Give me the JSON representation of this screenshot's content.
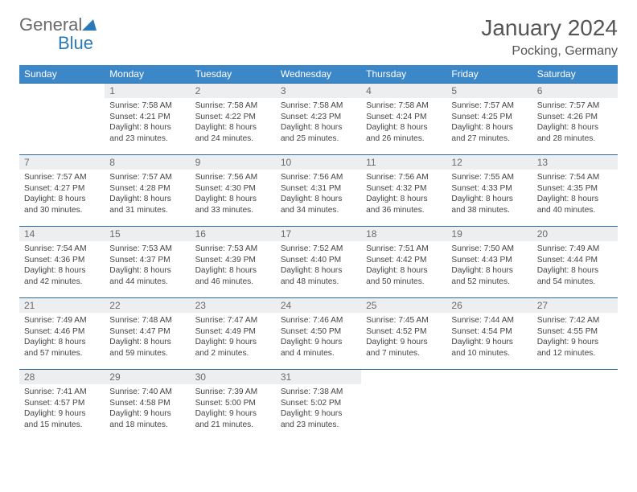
{
  "brand": {
    "part1": "General",
    "part2": "Blue"
  },
  "title": "January 2024",
  "location": "Pocking, Germany",
  "headers": [
    "Sunday",
    "Monday",
    "Tuesday",
    "Wednesday",
    "Thursday",
    "Friday",
    "Saturday"
  ],
  "colors": {
    "header_bg": "#3b87c8",
    "header_fg": "#ffffff",
    "row_border": "#2a6aa0",
    "daynum_bg": "#eceeef",
    "daynum_fg": "#6b6b6b",
    "body_fg": "#444444",
    "logo_gray": "#6a6a6a",
    "logo_blue": "#2a7ab9"
  },
  "weeks": [
    [
      {
        "n": "",
        "sr": "",
        "ss": "",
        "dl": "",
        "empty": true
      },
      {
        "n": "1",
        "sr": "Sunrise: 7:58 AM",
        "ss": "Sunset: 4:21 PM",
        "dl": "Daylight: 8 hours and 23 minutes."
      },
      {
        "n": "2",
        "sr": "Sunrise: 7:58 AM",
        "ss": "Sunset: 4:22 PM",
        "dl": "Daylight: 8 hours and 24 minutes."
      },
      {
        "n": "3",
        "sr": "Sunrise: 7:58 AM",
        "ss": "Sunset: 4:23 PM",
        "dl": "Daylight: 8 hours and 25 minutes."
      },
      {
        "n": "4",
        "sr": "Sunrise: 7:58 AM",
        "ss": "Sunset: 4:24 PM",
        "dl": "Daylight: 8 hours and 26 minutes."
      },
      {
        "n": "5",
        "sr": "Sunrise: 7:57 AM",
        "ss": "Sunset: 4:25 PM",
        "dl": "Daylight: 8 hours and 27 minutes."
      },
      {
        "n": "6",
        "sr": "Sunrise: 7:57 AM",
        "ss": "Sunset: 4:26 PM",
        "dl": "Daylight: 8 hours and 28 minutes."
      }
    ],
    [
      {
        "n": "7",
        "sr": "Sunrise: 7:57 AM",
        "ss": "Sunset: 4:27 PM",
        "dl": "Daylight: 8 hours and 30 minutes."
      },
      {
        "n": "8",
        "sr": "Sunrise: 7:57 AM",
        "ss": "Sunset: 4:28 PM",
        "dl": "Daylight: 8 hours and 31 minutes."
      },
      {
        "n": "9",
        "sr": "Sunrise: 7:56 AM",
        "ss": "Sunset: 4:30 PM",
        "dl": "Daylight: 8 hours and 33 minutes."
      },
      {
        "n": "10",
        "sr": "Sunrise: 7:56 AM",
        "ss": "Sunset: 4:31 PM",
        "dl": "Daylight: 8 hours and 34 minutes."
      },
      {
        "n": "11",
        "sr": "Sunrise: 7:56 AM",
        "ss": "Sunset: 4:32 PM",
        "dl": "Daylight: 8 hours and 36 minutes."
      },
      {
        "n": "12",
        "sr": "Sunrise: 7:55 AM",
        "ss": "Sunset: 4:33 PM",
        "dl": "Daylight: 8 hours and 38 minutes."
      },
      {
        "n": "13",
        "sr": "Sunrise: 7:54 AM",
        "ss": "Sunset: 4:35 PM",
        "dl": "Daylight: 8 hours and 40 minutes."
      }
    ],
    [
      {
        "n": "14",
        "sr": "Sunrise: 7:54 AM",
        "ss": "Sunset: 4:36 PM",
        "dl": "Daylight: 8 hours and 42 minutes."
      },
      {
        "n": "15",
        "sr": "Sunrise: 7:53 AM",
        "ss": "Sunset: 4:37 PM",
        "dl": "Daylight: 8 hours and 44 minutes."
      },
      {
        "n": "16",
        "sr": "Sunrise: 7:53 AM",
        "ss": "Sunset: 4:39 PM",
        "dl": "Daylight: 8 hours and 46 minutes."
      },
      {
        "n": "17",
        "sr": "Sunrise: 7:52 AM",
        "ss": "Sunset: 4:40 PM",
        "dl": "Daylight: 8 hours and 48 minutes."
      },
      {
        "n": "18",
        "sr": "Sunrise: 7:51 AM",
        "ss": "Sunset: 4:42 PM",
        "dl": "Daylight: 8 hours and 50 minutes."
      },
      {
        "n": "19",
        "sr": "Sunrise: 7:50 AM",
        "ss": "Sunset: 4:43 PM",
        "dl": "Daylight: 8 hours and 52 minutes."
      },
      {
        "n": "20",
        "sr": "Sunrise: 7:49 AM",
        "ss": "Sunset: 4:44 PM",
        "dl": "Daylight: 8 hours and 54 minutes."
      }
    ],
    [
      {
        "n": "21",
        "sr": "Sunrise: 7:49 AM",
        "ss": "Sunset: 4:46 PM",
        "dl": "Daylight: 8 hours and 57 minutes."
      },
      {
        "n": "22",
        "sr": "Sunrise: 7:48 AM",
        "ss": "Sunset: 4:47 PM",
        "dl": "Daylight: 8 hours and 59 minutes."
      },
      {
        "n": "23",
        "sr": "Sunrise: 7:47 AM",
        "ss": "Sunset: 4:49 PM",
        "dl": "Daylight: 9 hours and 2 minutes."
      },
      {
        "n": "24",
        "sr": "Sunrise: 7:46 AM",
        "ss": "Sunset: 4:50 PM",
        "dl": "Daylight: 9 hours and 4 minutes."
      },
      {
        "n": "25",
        "sr": "Sunrise: 7:45 AM",
        "ss": "Sunset: 4:52 PM",
        "dl": "Daylight: 9 hours and 7 minutes."
      },
      {
        "n": "26",
        "sr": "Sunrise: 7:44 AM",
        "ss": "Sunset: 4:54 PM",
        "dl": "Daylight: 9 hours and 10 minutes."
      },
      {
        "n": "27",
        "sr": "Sunrise: 7:42 AM",
        "ss": "Sunset: 4:55 PM",
        "dl": "Daylight: 9 hours and 12 minutes."
      }
    ],
    [
      {
        "n": "28",
        "sr": "Sunrise: 7:41 AM",
        "ss": "Sunset: 4:57 PM",
        "dl": "Daylight: 9 hours and 15 minutes."
      },
      {
        "n": "29",
        "sr": "Sunrise: 7:40 AM",
        "ss": "Sunset: 4:58 PM",
        "dl": "Daylight: 9 hours and 18 minutes."
      },
      {
        "n": "30",
        "sr": "Sunrise: 7:39 AM",
        "ss": "Sunset: 5:00 PM",
        "dl": "Daylight: 9 hours and 21 minutes."
      },
      {
        "n": "31",
        "sr": "Sunrise: 7:38 AM",
        "ss": "Sunset: 5:02 PM",
        "dl": "Daylight: 9 hours and 23 minutes."
      },
      {
        "n": "",
        "sr": "",
        "ss": "",
        "dl": "",
        "empty": true
      },
      {
        "n": "",
        "sr": "",
        "ss": "",
        "dl": "",
        "empty": true
      },
      {
        "n": "",
        "sr": "",
        "ss": "",
        "dl": "",
        "empty": true
      }
    ]
  ]
}
